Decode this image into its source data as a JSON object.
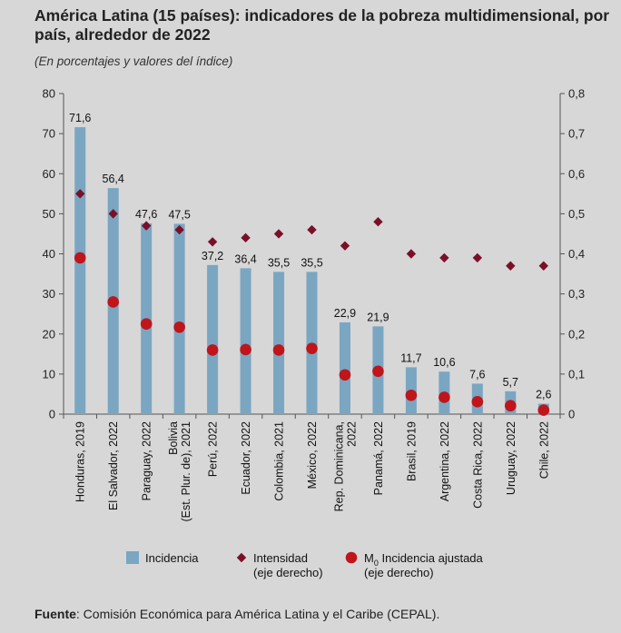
{
  "header": {
    "title": "América Latina (15 países): indicadores de la pobreza multidimensional, por país, alrededor de 2022",
    "subtitle": "(En porcentajes y valores del índice)"
  },
  "colors": {
    "bar": "#7aa6c2",
    "diamond": "#7a1028",
    "dot": "#c0151a"
  },
  "chart_data": {
    "type": "bar",
    "categories": [
      [
        "Honduras, 2019"
      ],
      [
        "El Salvador, 2022"
      ],
      [
        "Paraguay, 2022"
      ],
      [
        "Bolivia",
        "(Est. Plur. de), 2021"
      ],
      [
        "Perú, 2022"
      ],
      [
        "Ecuador, 2022"
      ],
      [
        "Colombia, 2021"
      ],
      [
        "México, 2022"
      ],
      [
        "Rep. Dominicana,",
        "2022"
      ],
      [
        "Panamá, 2022"
      ],
      [
        "Brasil, 2019"
      ],
      [
        "Argentina, 2022"
      ],
      [
        "Costa Rica, 2022"
      ],
      [
        "Uruguay, 2022"
      ],
      [
        "Chile, 2022"
      ]
    ],
    "series": [
      {
        "name": "Incidencia",
        "type": "bar",
        "axis": "left",
        "values": [
          71.6,
          56.4,
          47.6,
          47.5,
          37.2,
          36.4,
          35.5,
          35.5,
          22.9,
          21.9,
          11.7,
          10.6,
          7.6,
          5.7,
          2.6
        ],
        "labels": [
          "71,6",
          "56,4",
          "47,6",
          "47,5",
          "37,2",
          "36,4",
          "35,5",
          "35,5",
          "22,9",
          "21,9",
          "11,7",
          "10,6",
          "7,6",
          "5,7",
          "2,6"
        ]
      },
      {
        "name": "Intensidad",
        "name_line2": "(eje derecho)",
        "type": "scatter-diamond",
        "axis": "right",
        "values": [
          0.55,
          0.5,
          0.47,
          0.46,
          0.43,
          0.44,
          0.45,
          0.46,
          0.42,
          0.48,
          0.4,
          0.39,
          0.39,
          0.37,
          0.37
        ]
      },
      {
        "name": "M",
        "name_sub": "0",
        "name_rest": " Incidencia ajustada",
        "name_line2": "(eje derecho)",
        "type": "scatter-circle",
        "axis": "right",
        "values": [
          0.39,
          0.28,
          0.225,
          0.217,
          0.16,
          0.161,
          0.16,
          0.164,
          0.098,
          0.107,
          0.047,
          0.042,
          0.031,
          0.021,
          0.01
        ]
      }
    ],
    "y_left": {
      "min": 0,
      "max": 80,
      "ticks": [
        0,
        10,
        20,
        30,
        40,
        50,
        60,
        70,
        80
      ],
      "tick_labels": [
        "0",
        "10",
        "20",
        "30",
        "40",
        "50",
        "60",
        "70",
        "80"
      ]
    },
    "y_right": {
      "min": 0,
      "max": 0.8,
      "ticks": [
        0,
        0.1,
        0.2,
        0.3,
        0.4,
        0.5,
        0.6,
        0.7,
        0.8
      ],
      "tick_labels": [
        "0",
        "0,1",
        "0,2",
        "0,3",
        "0,4",
        "0,5",
        "0,6",
        "0,7",
        "0,8"
      ]
    },
    "legend_position": "bottom"
  },
  "footer": {
    "source_label": "Fuente",
    "source_text": ": Comisión Económica para América Latina y el Caribe (CEPAL)."
  }
}
